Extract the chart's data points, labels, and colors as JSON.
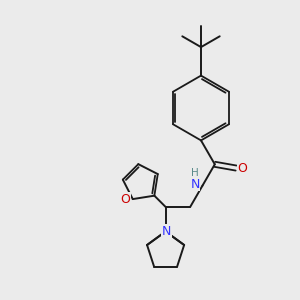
{
  "background_color": "#ebebeb",
  "bond_color": "#1a1a1a",
  "N_color": "#3333ff",
  "O_color": "#cc0000",
  "H_color": "#5a8a8a",
  "figsize": [
    3.0,
    3.0
  ],
  "dpi": 100,
  "xlim": [
    0,
    10
  ],
  "ylim": [
    0,
    10
  ],
  "lw_single": 1.4,
  "lw_double": 1.3,
  "font_size": 9.0,
  "font_size_H": 7.5
}
